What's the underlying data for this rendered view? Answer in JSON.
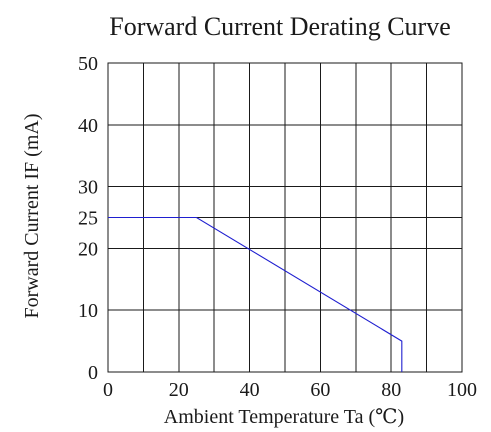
{
  "chart_data": {
    "type": "line",
    "title": "Forward Current Derating Curve",
    "xlabel": "Ambient Temperature Ta (℃)",
    "ylabel": "Forward Current IF (mA)",
    "xlim": [
      0,
      100
    ],
    "ylim": [
      0,
      50
    ],
    "x_ticks": [
      0,
      20,
      40,
      60,
      80,
      100
    ],
    "y_ticks": [
      0,
      10,
      20,
      25,
      30,
      40,
      50
    ],
    "x_grid": [
      0,
      10,
      20,
      30,
      40,
      50,
      60,
      70,
      80,
      90,
      100
    ],
    "y_grid": [
      0,
      10,
      20,
      25,
      30,
      40,
      50
    ],
    "grid": true,
    "series": [
      {
        "color": "#1f1fd0",
        "x": [
          0,
          25,
          83,
          83
        ],
        "y": [
          25,
          25,
          5,
          0
        ]
      }
    ]
  }
}
